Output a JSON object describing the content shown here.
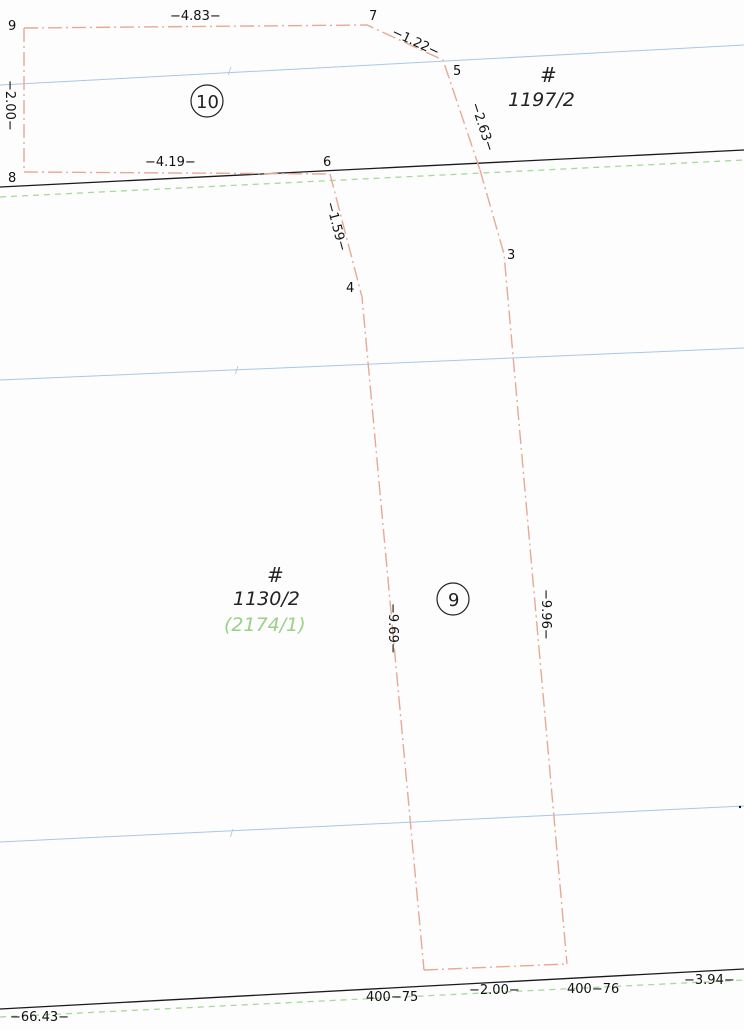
{
  "point_numbers": {
    "p9": "9",
    "p7": "7",
    "p5": "5",
    "p6": "6",
    "p8": "8",
    "p4": "4",
    "p3": "3"
  },
  "dimensions": {
    "d_9_7": "−4.83−",
    "d_7_5": "−1.22−",
    "d_9_8": "−2.00−",
    "d_8_6": "−4.19−",
    "d_5_3": "−2.63−",
    "d_6_4": "−1.59−",
    "d_4_bottom": "−9.69−",
    "d_3_bottom": "−9.96−",
    "d_bottom_mid": "−2.00−",
    "d_bottom_right": "−3.94−",
    "d_bottom_left": "−66.43−"
  },
  "parcels": {
    "upper_hash": "#",
    "upper_number": "1197/2",
    "lower_hash": "#",
    "lower_number": "1130/2",
    "lower_old_number": "(2174/1)"
  },
  "lots": {
    "lot_10": "10",
    "lot_9": "9"
  },
  "bottom_points": {
    "left": "400−75",
    "right": "400−76"
  },
  "colors": {
    "boundary_dashdot": "#e6a996",
    "black_line": "#1a1a1a",
    "blue_line": "#a9c7e6",
    "green_dashed": "#a6d99a",
    "old_parcel_text": "#9ad088"
  }
}
